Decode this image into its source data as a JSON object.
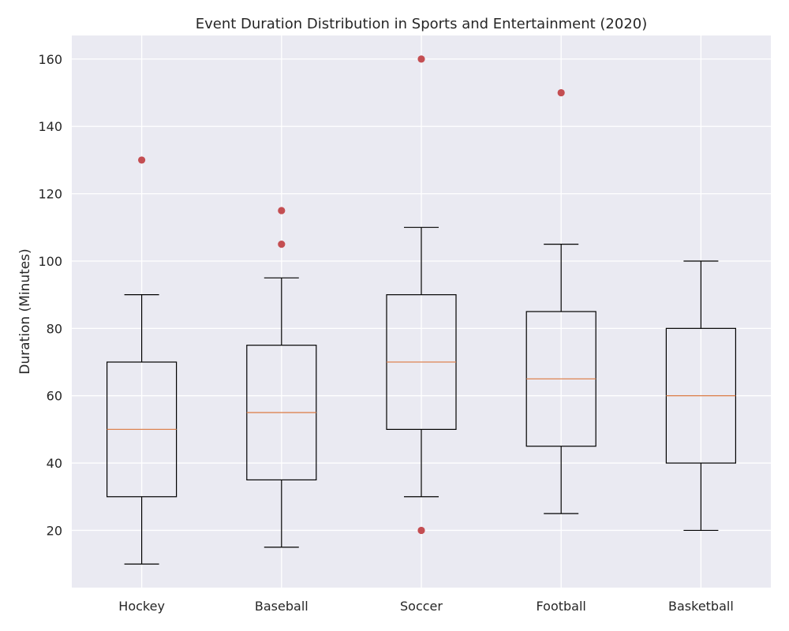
{
  "chart_data": {
    "type": "box",
    "title": "Event Duration Distribution in Sports and Entertainment (2020)",
    "xlabel": "",
    "ylabel": "Duration (Minutes)",
    "ylim": [
      3,
      167
    ],
    "yticks": [
      20,
      40,
      60,
      80,
      100,
      120,
      140,
      160
    ],
    "grid": true,
    "legend": "none",
    "colors": {
      "background": "#eaeaf2",
      "grid": "#ffffff",
      "box": "#000000",
      "median": "#dd8452",
      "outlier": "#c44e52"
    },
    "categories": [
      "Hockey",
      "Baseball",
      "Soccer",
      "Football",
      "Basketball"
    ],
    "boxes": [
      {
        "category": "Hockey",
        "whisker_low": 10,
        "q1": 30,
        "median": 50,
        "q3": 70,
        "whisker_high": 90,
        "outliers": [
          130
        ]
      },
      {
        "category": "Baseball",
        "whisker_low": 15,
        "q1": 35,
        "median": 55,
        "q3": 75,
        "whisker_high": 95,
        "outliers": [
          105,
          115
        ]
      },
      {
        "category": "Soccer",
        "whisker_low": 30,
        "q1": 50,
        "median": 70,
        "q3": 90,
        "whisker_high": 110,
        "outliers": [
          20,
          160
        ]
      },
      {
        "category": "Football",
        "whisker_low": 25,
        "q1": 45,
        "median": 65,
        "q3": 85,
        "whisker_high": 105,
        "outliers": [
          150
        ]
      },
      {
        "category": "Basketball",
        "whisker_low": 20,
        "q1": 40,
        "median": 60,
        "q3": 80,
        "whisker_high": 100,
        "outliers": []
      }
    ]
  }
}
